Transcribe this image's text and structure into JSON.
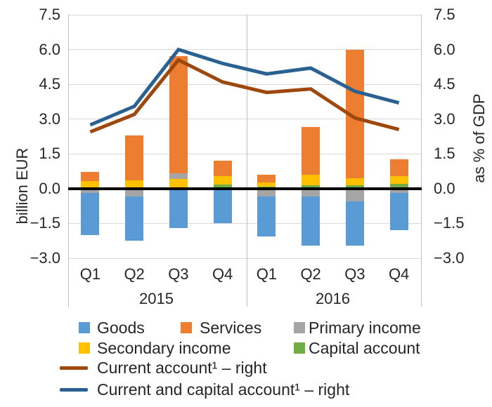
{
  "chart_data": {
    "type": "bar",
    "subtype": "stacked-bars-with-lines",
    "title": "",
    "categories": [
      "Q1",
      "Q2",
      "Q3",
      "Q4",
      "Q1",
      "Q2",
      "Q3",
      "Q4"
    ],
    "year_groups": [
      "2015",
      "2016"
    ],
    "left_axis": {
      "title": "billion EUR",
      "ticks": [
        "7.5",
        "6.0",
        "4.5",
        "3.0",
        "1.5",
        "0.0",
        "−1.5",
        "−3.0"
      ],
      "tick_values": [
        7.5,
        6.0,
        4.5,
        3.0,
        1.5,
        0.0,
        -1.5,
        -3.0
      ],
      "max": 7.5,
      "min": -3.0
    },
    "right_axis": {
      "title": "as % of GDP",
      "ticks": [
        "7.5",
        "6.0",
        "4.5",
        "3.0",
        "1.5",
        "0.0",
        "−1.5",
        "−3.0"
      ]
    },
    "bar_series": [
      {
        "name": "Goods",
        "color": "#5B9BD5",
        "values": [
          -1.8,
          -1.9,
          -1.7,
          -1.45,
          -1.7,
          -2.1,
          -1.9,
          -1.6
        ]
      },
      {
        "name": "Services",
        "color": "#ED7D31",
        "values": [
          0.4,
          1.95,
          5.05,
          0.67,
          0.32,
          2.05,
          5.55,
          0.72
        ]
      },
      {
        "name": "Primary income",
        "color": "#A5A5A5",
        "values": [
          -0.2,
          -0.35,
          0.25,
          -0.03,
          -0.35,
          -0.35,
          -0.55,
          -0.2
        ]
      },
      {
        "name": "Secondary income",
        "color": "#FFC000",
        "values": [
          0.27,
          0.3,
          0.34,
          0.35,
          0.18,
          0.45,
          0.3,
          0.35
        ]
      },
      {
        "name": "Capital account",
        "color": "#70AD47",
        "values": [
          0.05,
          0.05,
          0.07,
          0.18,
          0.1,
          0.15,
          0.15,
          0.2
        ]
      }
    ],
    "line_series": [
      {
        "name": "Current account¹ – right",
        "color": "#9E480E",
        "values": [
          2.45,
          3.2,
          5.55,
          4.6,
          4.15,
          4.3,
          3.05,
          2.55
        ]
      },
      {
        "name": "Current and capital account¹ – right",
        "color": "#2A6191",
        "values": [
          2.75,
          3.55,
          6.0,
          5.4,
          4.95,
          5.2,
          4.2,
          3.7
        ]
      }
    ],
    "stack_order_from_axis": [
      "Capital account",
      "Secondary income",
      "Primary income",
      "Services",
      "Goods"
    ],
    "layout_hints": {
      "grid": "horizontal-light-gray",
      "zero_line": "black-bold",
      "legend_position": "bottom-left",
      "group_divider": "vertical-line-between-years"
    }
  }
}
